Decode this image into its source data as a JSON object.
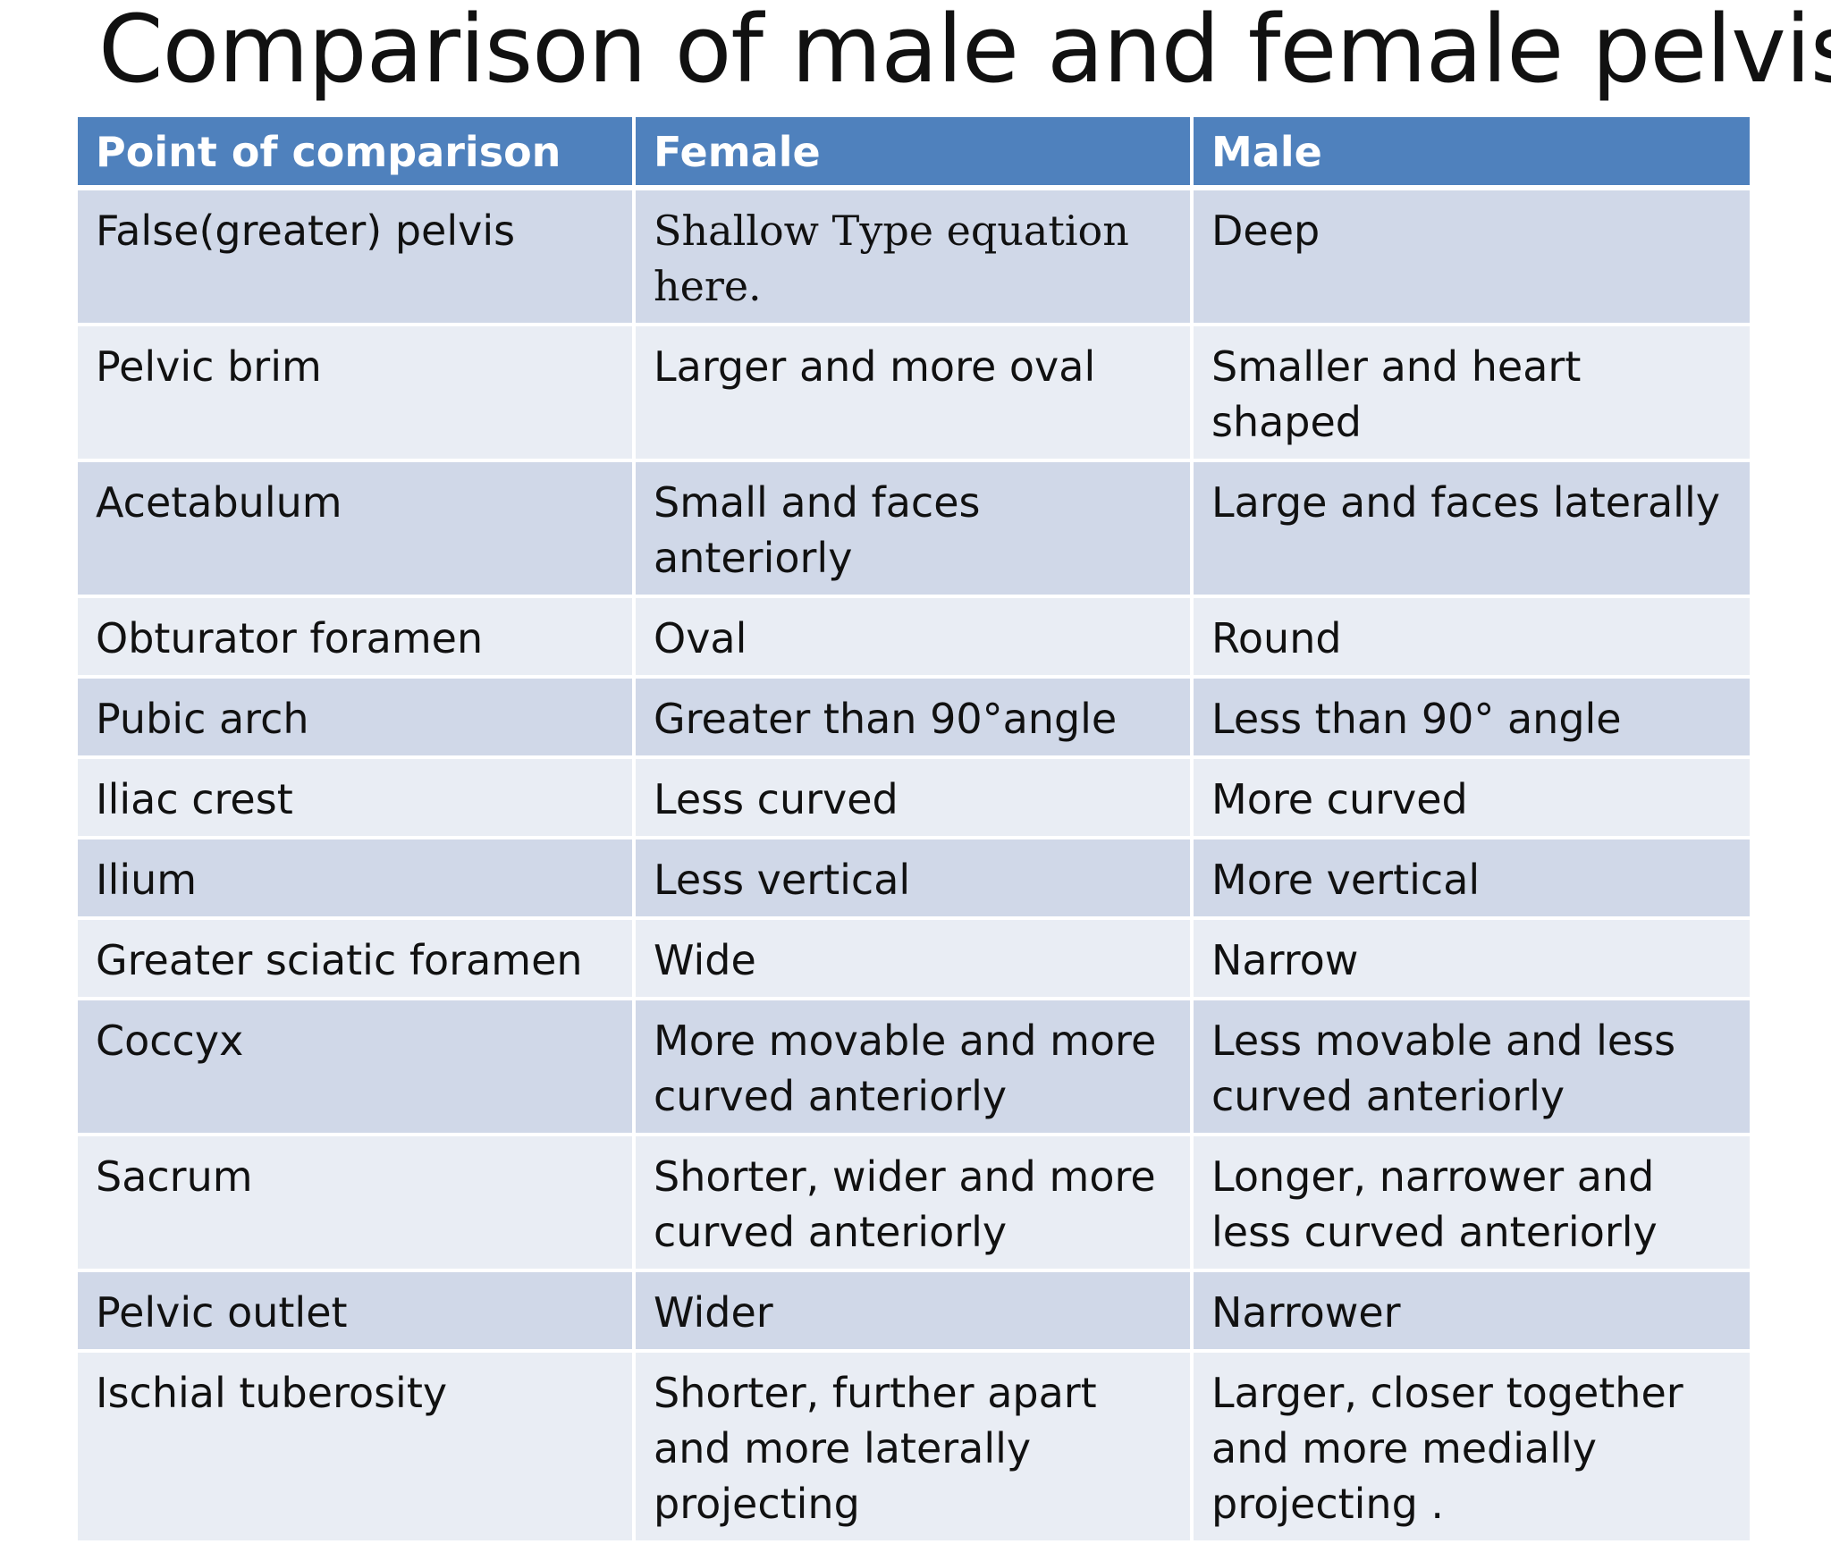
{
  "title": "Comparison of male and female pelvis",
  "table": {
    "headers": [
      "Point of comparison",
      "Female",
      "Male"
    ],
    "rows": [
      [
        "False(greater) pelvis",
        "Shallow Type equation here.",
        "Deep"
      ],
      [
        "Pelvic brim",
        "Larger and more oval",
        "Smaller and heart shaped"
      ],
      [
        "Acetabulum",
        "Small and faces anteriorly",
        "Large and faces laterally"
      ],
      [
        "Obturator foramen",
        "Oval",
        "Round"
      ],
      [
        "Pubic arch",
        "Greater than 90°angle",
        "Less than 90° angle"
      ],
      [
        "Iliac crest",
        "Less curved",
        "More curved"
      ],
      [
        "Ilium",
        "Less vertical",
        "More vertical"
      ],
      [
        "Greater sciatic foramen",
        "Wide",
        "Narrow"
      ],
      [
        "Coccyx",
        "More movable and more curved anteriorly",
        "Less movable and less curved anteriorly"
      ],
      [
        "Sacrum",
        "Shorter, wider and more curved anteriorly",
        "Longer, narrower and less curved anteriorly"
      ],
      [
        "Pelvic outlet",
        "Wider",
        "Narrower"
      ],
      [
        "Ischial tuberosity",
        "Shorter, further apart and more laterally projecting",
        "Larger, closer together and more medially projecting ."
      ]
    ]
  },
  "colors": {
    "header_bg": "#4f81bd",
    "row_dark": "#d0d8e8",
    "row_light": "#e9edf4",
    "header_text": "#ffffff"
  }
}
